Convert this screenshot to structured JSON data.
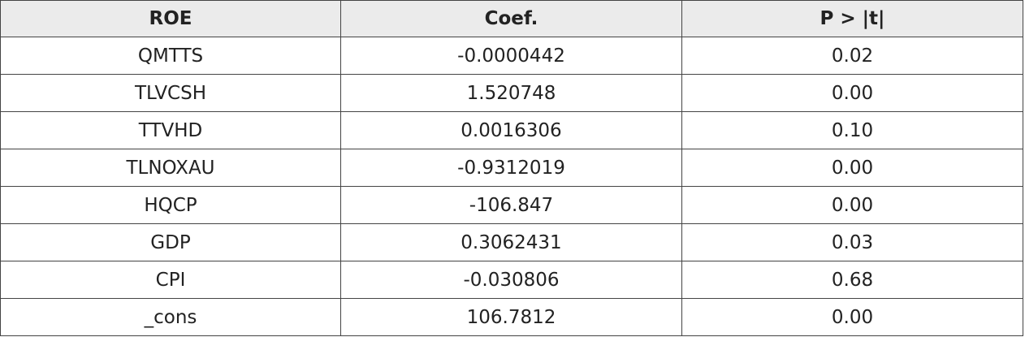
{
  "table": {
    "header": [
      "ROE",
      "Coef.",
      "P > |t|"
    ],
    "rows": [
      [
        "QMTTS",
        "-0.0000442",
        "0.02"
      ],
      [
        "TLVCSH",
        "1.520748",
        "0.00"
      ],
      [
        "TTVHD",
        "0.0016306",
        "0.10"
      ],
      [
        "TLNOXAU",
        "-0.9312019",
        "0.00"
      ],
      [
        "HQCP",
        "-106.847",
        "0.00"
      ],
      [
        "GDP",
        "0.3062431",
        "0.03"
      ],
      [
        "CPI",
        "-0.030806",
        "0.68"
      ],
      [
        "_cons",
        "106.7812",
        "0.00"
      ]
    ]
  }
}
